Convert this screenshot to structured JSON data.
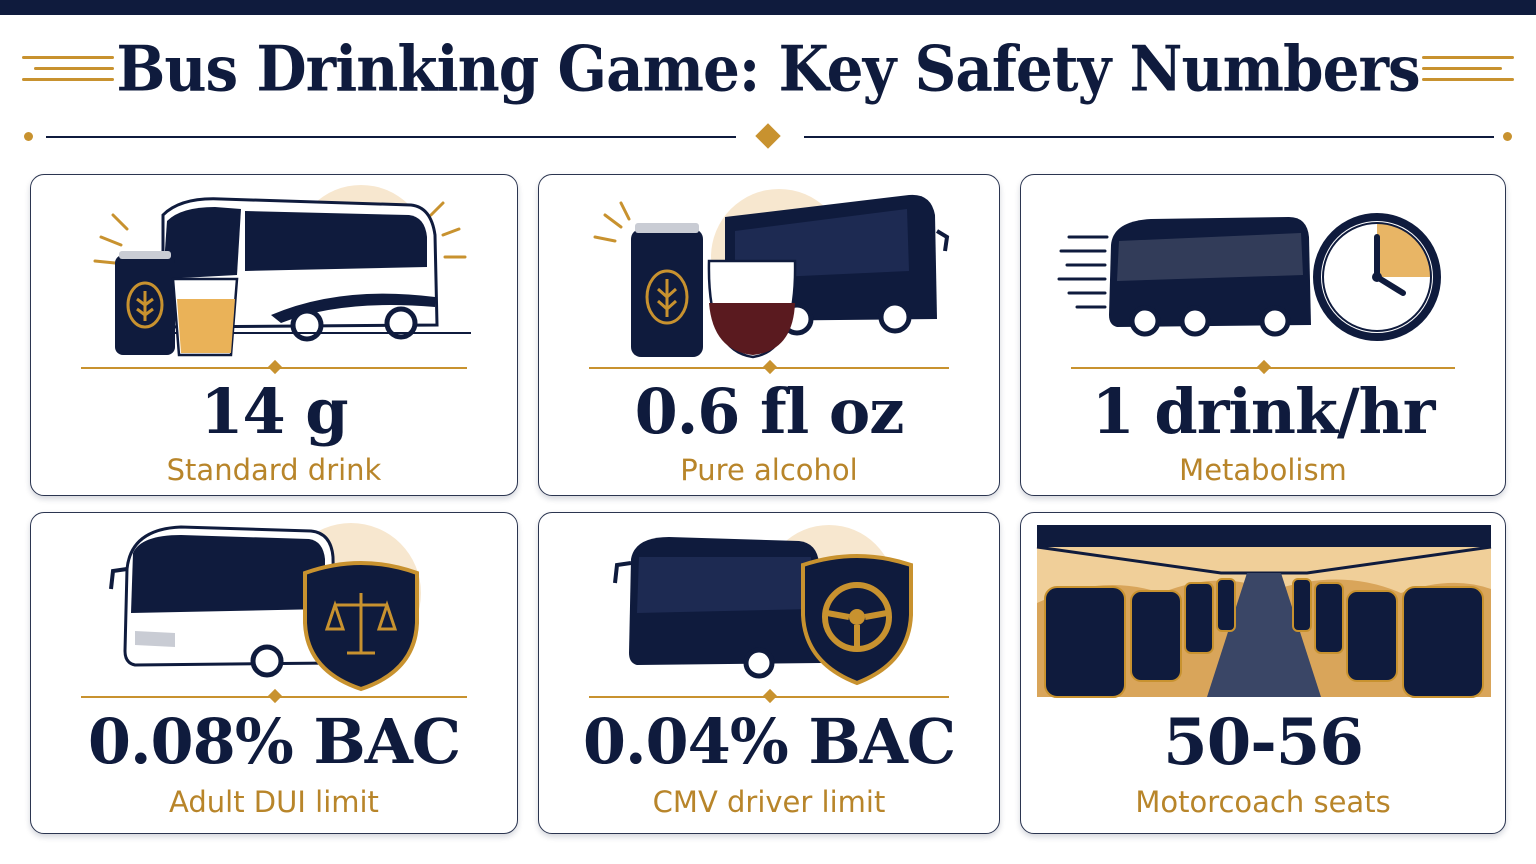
{
  "header": {
    "title": "Bus Drinking Game: Key Safety Numbers"
  },
  "colors": {
    "navy": "#0f1b3d",
    "gold": "#c8922f",
    "label_gold": "#b8852a",
    "peach": "#f7e7cf"
  },
  "cards": [
    {
      "value": "14 g",
      "label": "Standard drink",
      "icons": [
        "bus-icon",
        "beer-can-icon",
        "beer-glass-icon"
      ]
    },
    {
      "value": "0.6 fl oz",
      "label": "Pure alcohol",
      "icons": [
        "bus-icon",
        "beer-can-icon",
        "wine-glass-icon"
      ]
    },
    {
      "value": "1 drink/hr",
      "label": "Metabolism",
      "icons": [
        "bus-icon",
        "clock-icon"
      ]
    },
    {
      "value": "0.08% BAC",
      "label": "Adult DUI limit",
      "icons": [
        "bus-icon",
        "scales-shield-icon"
      ]
    },
    {
      "value": "0.04% BAC",
      "label": "CMV driver limit",
      "icons": [
        "bus-icon",
        "steering-wheel-shield-icon"
      ]
    },
    {
      "value": "50-56",
      "label": "Motorcoach seats",
      "icons": [
        "bus-interior-seats-icon"
      ]
    }
  ]
}
